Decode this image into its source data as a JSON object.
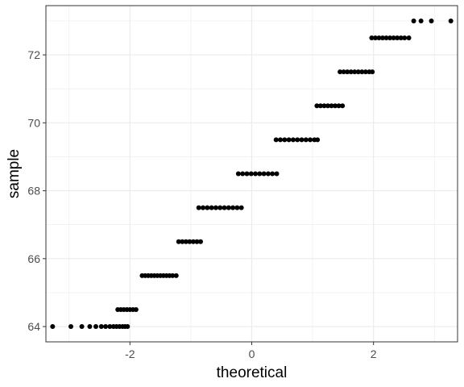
{
  "chart_data": {
    "type": "scatter",
    "subtype": "qq-plot",
    "title": "",
    "xlabel": "theoretical",
    "ylabel": "sample",
    "xlim": [
      -3.38,
      3.38
    ],
    "ylim": [
      63.55,
      73.45
    ],
    "x_ticks": [
      -2,
      0,
      2
    ],
    "x_tick_labels": [
      "-2",
      "0",
      "2"
    ],
    "y_ticks": [
      64,
      66,
      68,
      70,
      72
    ],
    "y_tick_labels": [
      "64",
      "66",
      "68",
      "70",
      "72"
    ],
    "grid": true,
    "legend": "none",
    "point_color": "#000000",
    "grid_color": "#ebebeb",
    "panel_border_color": "#333333",
    "groups": [
      {
        "y": 64.0,
        "x": [
          -3.27,
          -2.97,
          -2.79,
          -2.66,
          -2.56,
          -2.47,
          -2.4,
          -2.33,
          -2.27,
          -2.22,
          -2.17,
          -2.12,
          -2.08,
          -2.04
        ]
      },
      {
        "y": 64.5,
        "x": [
          -2.2,
          -2.15,
          -2.1,
          -2.05,
          -2.0,
          -1.95,
          -1.9
        ]
      },
      {
        "y": 65.5,
        "x": [
          -1.8,
          -1.75,
          -1.7,
          -1.65,
          -1.6,
          -1.55,
          -1.5,
          -1.45,
          -1.4,
          -1.35,
          -1.3,
          -1.24
        ]
      },
      {
        "y": 66.5,
        "x": [
          -1.2,
          -1.14,
          -1.08,
          -1.02,
          -0.96,
          -0.9,
          -0.84
        ]
      },
      {
        "y": 67.5,
        "x": [
          -0.87,
          -0.8,
          -0.73,
          -0.66,
          -0.59,
          -0.52,
          -0.45,
          -0.38,
          -0.31,
          -0.24,
          -0.17
        ]
      },
      {
        "y": 68.5,
        "x": [
          -0.22,
          -0.15,
          -0.08,
          -0.01,
          0.06,
          0.13,
          0.2,
          0.27,
          0.34,
          0.41
        ]
      },
      {
        "y": 69.5,
        "x": [
          0.4,
          0.47,
          0.54,
          0.61,
          0.68,
          0.75,
          0.82,
          0.89,
          0.96,
          1.03,
          1.08
        ]
      },
      {
        "y": 70.5,
        "x": [
          1.07,
          1.13,
          1.19,
          1.25,
          1.31,
          1.37,
          1.43,
          1.49
        ]
      },
      {
        "y": 71.5,
        "x": [
          1.45,
          1.51,
          1.57,
          1.63,
          1.69,
          1.75,
          1.81,
          1.87,
          1.93,
          1.98
        ]
      },
      {
        "y": 72.5,
        "x": [
          1.97,
          2.03,
          2.09,
          2.15,
          2.21,
          2.27,
          2.33,
          2.39,
          2.45,
          2.51,
          2.58
        ]
      },
      {
        "y": 73.0,
        "x": [
          2.66,
          2.78,
          2.95,
          3.27
        ]
      }
    ]
  }
}
